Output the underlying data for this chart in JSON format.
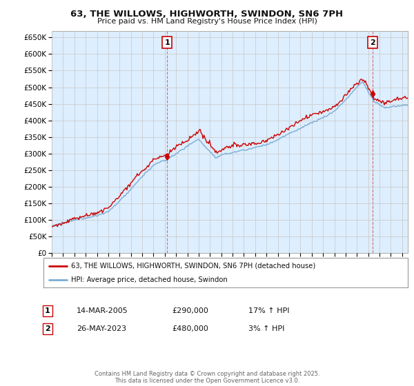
{
  "title": "63, THE WILLOWS, HIGHWORTH, SWINDON, SN6 7PH",
  "subtitle": "Price paid vs. HM Land Registry's House Price Index (HPI)",
  "legend_line1": "63, THE WILLOWS, HIGHWORTH, SWINDON, SN6 7PH (detached house)",
  "legend_line2": "HPI: Average price, detached house, Swindon",
  "annotation1_label": "1",
  "annotation1_date": "14-MAR-2005",
  "annotation1_price": "£290,000",
  "annotation1_hpi": "17% ↑ HPI",
  "annotation1_year": 2005.2,
  "annotation2_label": "2",
  "annotation2_date": "26-MAY-2023",
  "annotation2_price": "£480,000",
  "annotation2_hpi": "3% ↑ HPI",
  "annotation2_year": 2023.4,
  "footer": "Contains HM Land Registry data © Crown copyright and database right 2025.\nThis data is licensed under the Open Government Licence v3.0.",
  "property_color": "#cc0000",
  "hpi_color": "#7aadd4",
  "bg_fill_color": "#ddeeff",
  "background_color": "#ffffff",
  "grid_color": "#cccccc",
  "vline_color": "#dd4444",
  "ylim": [
    0,
    670000
  ],
  "yticks": [
    0,
    50000,
    100000,
    150000,
    200000,
    250000,
    300000,
    350000,
    400000,
    450000,
    500000,
    550000,
    600000,
    650000
  ],
  "xlim_start": 1995.0,
  "xlim_end": 2026.5
}
